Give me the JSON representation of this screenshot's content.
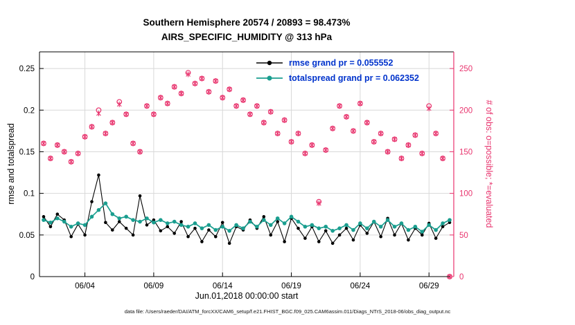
{
  "title": {
    "line1": "Southern Hemisphere 20574 / 20893 = 98.473%",
    "line2": "AIRS_SPECIFIC_HUMIDITY @ 313 hPa"
  },
  "footer": "data file: /Users/raeder/DAI/ATM_forcXX/CAM6_setup/f.e21.FHIST_BGC.f09_025.CAM6assim.011/Diags_NTrS_2018-06/obs_diag_output.nc",
  "colors": {
    "rmse": "#000000",
    "totalspread": "#1a9e8f",
    "obs": "#e8336d",
    "legend_text": "#0033cc",
    "grid": "#d8d8d8",
    "axis": "#000000"
  },
  "chart_data": {
    "type": "line",
    "title": "Southern Hemisphere 20574 / 20893 = 98.473% | AIRS_SPECIFIC_HUMIDITY @ 313 hPa",
    "xlabel": "Jun.01,2018 00:00:00 start",
    "ylabel_left": "rmse and totalspread",
    "ylabel_right": "# of obs: o=possible; *=evaluated",
    "xlim": [
      0.7,
      30.8
    ],
    "ylim_left": [
      0,
      0.27
    ],
    "ylim_right": [
      0,
      270
    ],
    "grid": true,
    "xticks": {
      "values": [
        4,
        9,
        14,
        19,
        24,
        29
      ],
      "labels": [
        "06/04",
        "06/09",
        "06/14",
        "06/19",
        "06/24",
        "06/29"
      ]
    },
    "yticks_left": {
      "values": [
        0,
        0.05,
        0.1,
        0.15,
        0.2,
        0.25
      ],
      "labels": [
        "0",
        "0.05",
        "0.1",
        "0.15",
        "0.2",
        "0.25"
      ]
    },
    "yticks_right": {
      "values": [
        0,
        50,
        100,
        150,
        200,
        250
      ],
      "labels": [
        "0",
        "50",
        "100",
        "150",
        "200",
        "250"
      ]
    },
    "x_days": [
      1,
      1.5,
      2,
      2.5,
      3,
      3.5,
      4,
      4.5,
      5,
      5.5,
      6,
      6.5,
      7,
      7.5,
      8,
      8.5,
      9,
      9.5,
      10,
      10.5,
      11,
      11.5,
      12,
      12.5,
      13,
      13.5,
      14,
      14.5,
      15,
      15.5,
      16,
      16.5,
      17,
      17.5,
      18,
      18.5,
      19,
      19.5,
      20,
      20.5,
      21,
      21.5,
      22,
      22.5,
      23,
      23.5,
      24,
      24.5,
      25,
      25.5,
      26,
      26.5,
      27,
      27.5,
      28,
      28.5,
      29,
      29.5,
      30,
      30.5
    ],
    "series": [
      {
        "name": "rmse grand pr = 0.055552",
        "color": "#000000",
        "axis": "left",
        "line": true,
        "marker": "dot",
        "values": [
          0.072,
          0.06,
          0.075,
          0.068,
          0.048,
          0.063,
          0.05,
          0.09,
          0.122,
          0.065,
          0.056,
          0.066,
          0.058,
          0.05,
          0.097,
          0.062,
          0.068,
          0.055,
          0.06,
          0.052,
          0.066,
          0.048,
          0.058,
          0.042,
          0.056,
          0.048,
          0.065,
          0.04,
          0.06,
          0.056,
          0.068,
          0.058,
          0.072,
          0.05,
          0.066,
          0.042,
          0.07,
          0.058,
          0.046,
          0.06,
          0.042,
          0.055,
          0.04,
          0.05,
          0.058,
          0.044,
          0.062,
          0.052,
          0.066,
          0.048,
          0.07,
          0.05,
          0.064,
          0.044,
          0.058,
          0.05,
          0.064,
          0.046,
          0.06,
          0.065
        ]
      },
      {
        "name": "totalspread grand pr = 0.062352",
        "color": "#1a9e8f",
        "axis": "left",
        "line": true,
        "marker": "dot",
        "values": [
          0.068,
          0.065,
          0.07,
          0.066,
          0.06,
          0.064,
          0.062,
          0.072,
          0.08,
          0.088,
          0.075,
          0.07,
          0.072,
          0.068,
          0.066,
          0.07,
          0.065,
          0.068,
          0.064,
          0.066,
          0.062,
          0.06,
          0.064,
          0.058,
          0.062,
          0.056,
          0.06,
          0.055,
          0.062,
          0.058,
          0.066,
          0.06,
          0.068,
          0.062,
          0.07,
          0.064,
          0.072,
          0.066,
          0.06,
          0.062,
          0.058,
          0.06,
          0.055,
          0.058,
          0.062,
          0.056,
          0.064,
          0.058,
          0.066,
          0.06,
          0.068,
          0.06,
          0.064,
          0.056,
          0.06,
          0.054,
          0.062,
          0.056,
          0.064,
          0.068
        ]
      },
      {
        "name": "# of obs possible",
        "color": "#e8336d",
        "axis": "right",
        "line": false,
        "marker": "circle",
        "values": [
          160,
          142,
          158,
          150,
          138,
          148,
          168,
          180,
          200,
          172,
          185,
          210,
          195,
          160,
          150,
          205,
          195,
          215,
          208,
          228,
          220,
          245,
          232,
          238,
          222,
          235,
          215,
          225,
          205,
          212,
          195,
          205,
          185,
          198,
          172,
          188,
          162,
          172,
          148,
          158,
          90,
          152,
          178,
          205,
          192,
          175,
          208,
          185,
          162,
          172,
          150,
          165,
          142,
          158,
          170,
          148,
          205,
          172,
          142,
          0
        ]
      },
      {
        "name": "# of obs evaluated",
        "color": "#e8336d",
        "axis": "right",
        "line": false,
        "marker": "asterisk",
        "values": [
          160,
          142,
          158,
          150,
          138,
          148,
          168,
          180,
          196,
          172,
          185,
          207,
          195,
          160,
          150,
          205,
          195,
          215,
          208,
          228,
          220,
          243,
          232,
          238,
          222,
          235,
          215,
          225,
          205,
          212,
          195,
          205,
          185,
          198,
          172,
          188,
          162,
          172,
          148,
          158,
          88,
          152,
          178,
          205,
          192,
          175,
          208,
          185,
          162,
          172,
          150,
          165,
          142,
          158,
          170,
          148,
          202,
          172,
          142,
          0
        ]
      }
    ],
    "legend": {
      "position": "top-center-inside",
      "box": false,
      "text_color": "#0033cc",
      "entries": [
        {
          "label": "rmse grand pr = 0.055552",
          "color": "#000000"
        },
        {
          "label": "totalspread grand pr = 0.062352",
          "color": "#1a9e8f"
        }
      ]
    }
  }
}
